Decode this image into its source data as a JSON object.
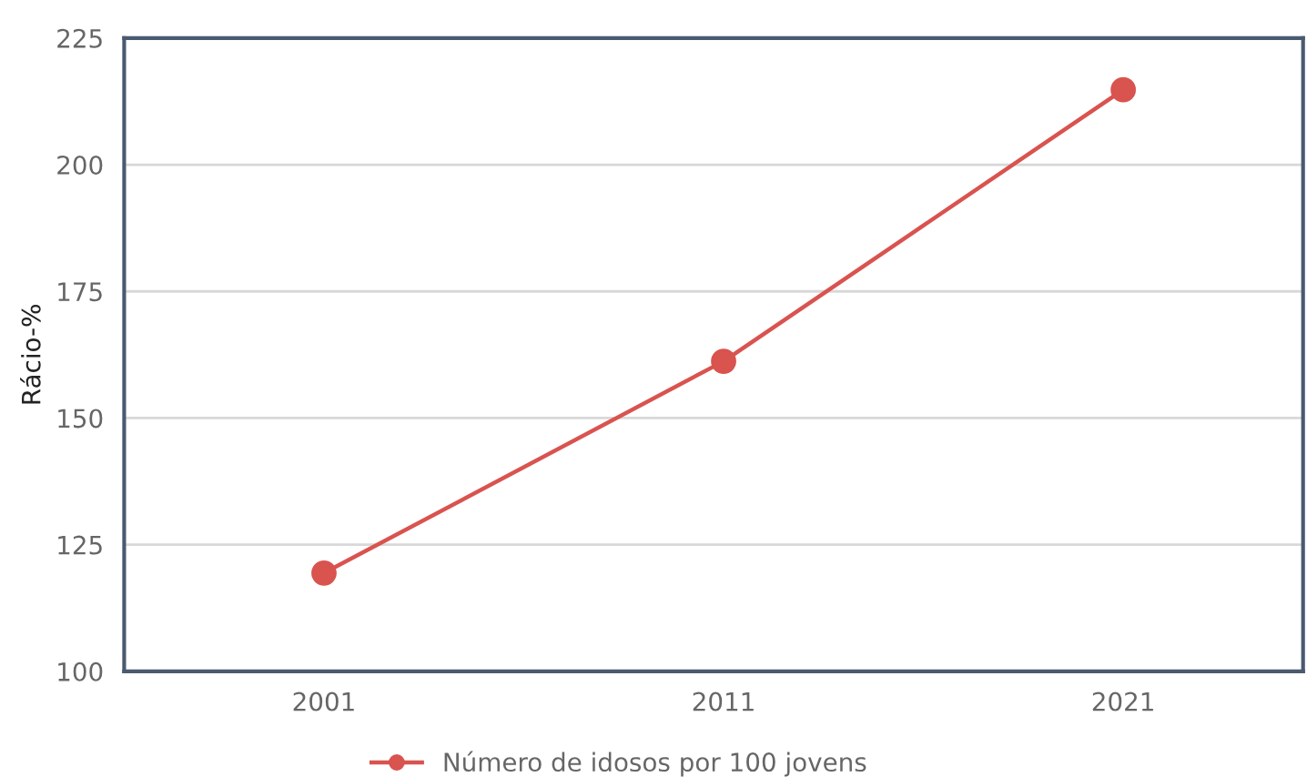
{
  "chart_data": {
    "type": "line",
    "ylabel": "Rácio-%",
    "categories": [
      "2001",
      "2011",
      "2021"
    ],
    "series": [
      {
        "name": "Número de idosos por 100 jovens",
        "color": "#d9534f",
        "values": [
          119.4,
          161.2,
          214.8
        ]
      }
    ],
    "ylim": [
      100,
      225
    ],
    "yticks": [
      100,
      125,
      150,
      175,
      200,
      225
    ],
    "grid": "y",
    "legend": "bottom",
    "marker": "circle",
    "line_style": "solid"
  }
}
